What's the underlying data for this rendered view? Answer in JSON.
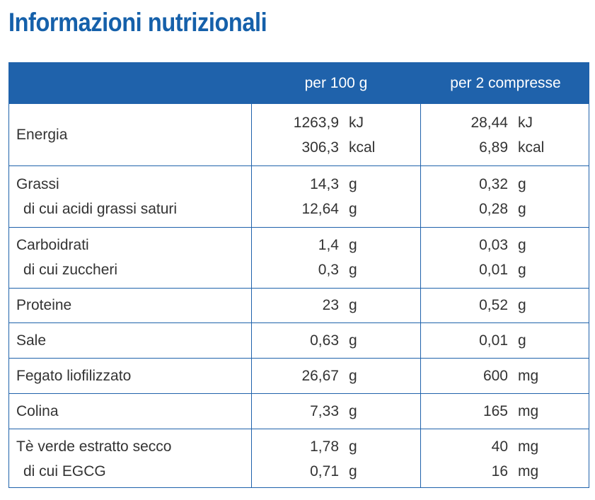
{
  "title": "Informazioni nutrizionali",
  "header": {
    "col1": "",
    "col2": "per 100 g",
    "col3": "per 2 compresse"
  },
  "rows": [
    {
      "lines": [
        {
          "label": "Energia",
          "sub": false,
          "v1": "1263,9",
          "u1": "kJ",
          "v2": "28,44",
          "u2": "kJ"
        },
        {
          "label": "",
          "sub": false,
          "v1": "306,3",
          "u1": "kcal",
          "v2": "6,89",
          "u2": "kcal"
        }
      ]
    },
    {
      "lines": [
        {
          "label": "Grassi",
          "sub": false,
          "v1": "14,3",
          "u1": "g",
          "v2": "0,32",
          "u2": "g"
        },
        {
          "label": "di cui acidi grassi saturi",
          "sub": true,
          "v1": "12,64",
          "u1": "g",
          "v2": "0,28",
          "u2": "g"
        }
      ]
    },
    {
      "lines": [
        {
          "label": "Carboidrati",
          "sub": false,
          "v1": "1,4",
          "u1": "g",
          "v2": "0,03",
          "u2": "g"
        },
        {
          "label": "di cui zuccheri",
          "sub": true,
          "v1": "0,3",
          "u1": "g",
          "v2": "0,01",
          "u2": "g"
        }
      ]
    },
    {
      "lines": [
        {
          "label": "Proteine",
          "sub": false,
          "v1": "23",
          "u1": "g",
          "v2": "0,52",
          "u2": "g"
        }
      ]
    },
    {
      "lines": [
        {
          "label": "Sale",
          "sub": false,
          "v1": "0,63",
          "u1": "g",
          "v2": "0,01",
          "u2": "g"
        }
      ]
    },
    {
      "lines": [
        {
          "label": "Fegato liofilizzato",
          "sub": false,
          "v1": "26,67",
          "u1": "g",
          "v2": "600",
          "u2": "mg"
        }
      ]
    },
    {
      "lines": [
        {
          "label": "Colina",
          "sub": false,
          "v1": "7,33",
          "u1": "g",
          "v2": "165",
          "u2": "mg"
        }
      ]
    },
    {
      "lines": [
        {
          "label": "Tè verde estratto secco",
          "sub": false,
          "v1": "1,78",
          "u1": "g",
          "v2": "40",
          "u2": "mg"
        },
        {
          "label": "di cui EGCG",
          "sub": true,
          "v1": "0,71",
          "u1": "g",
          "v2": "16",
          "u2": "mg"
        }
      ]
    }
  ],
  "colors": {
    "accent": "#1f62ab",
    "title": "#1560aa",
    "text": "#333333"
  }
}
